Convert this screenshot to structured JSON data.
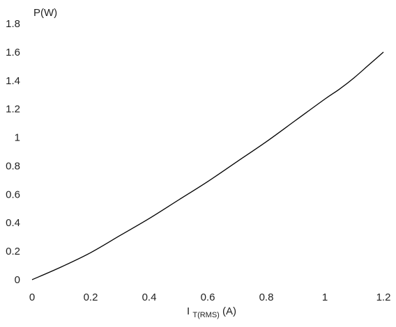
{
  "chart_data": {
    "type": "line",
    "title": "",
    "xlabel": {
      "main": "I",
      "sub": "T(RMS)",
      "unit": "(A)"
    },
    "ylabel": "P(W)",
    "xlim": [
      0,
      1.2
    ],
    "ylim": [
      0,
      1.8
    ],
    "x_ticks": [
      0,
      0.2,
      0.4,
      0.6,
      0.8,
      1,
      1.2
    ],
    "x_tick_labels": [
      "0",
      "0.2",
      "0.4",
      "0.6",
      "0.8",
      "1",
      "1.2"
    ],
    "y_ticks": [
      0,
      0.2,
      0.4,
      0.6,
      0.8,
      1,
      1.2,
      1.4,
      1.6,
      1.8
    ],
    "y_tick_labels": [
      "0",
      "0.2",
      "0.4",
      "0.6",
      "0.8",
      "1",
      "1.2",
      "1.4",
      "1.6",
      "1.8"
    ],
    "grid": false,
    "series": [
      {
        "color": "#000000",
        "x": [
          0,
          0.1,
          0.2,
          0.3,
          0.4,
          0.5,
          0.6,
          0.7,
          0.8,
          0.9,
          1.0,
          1.05,
          1.1,
          1.15,
          1.2
        ],
        "y": [
          0,
          0.09,
          0.19,
          0.31,
          0.43,
          0.56,
          0.69,
          0.83,
          0.97,
          1.12,
          1.27,
          1.34,
          1.42,
          1.51,
          1.6
        ]
      }
    ]
  }
}
